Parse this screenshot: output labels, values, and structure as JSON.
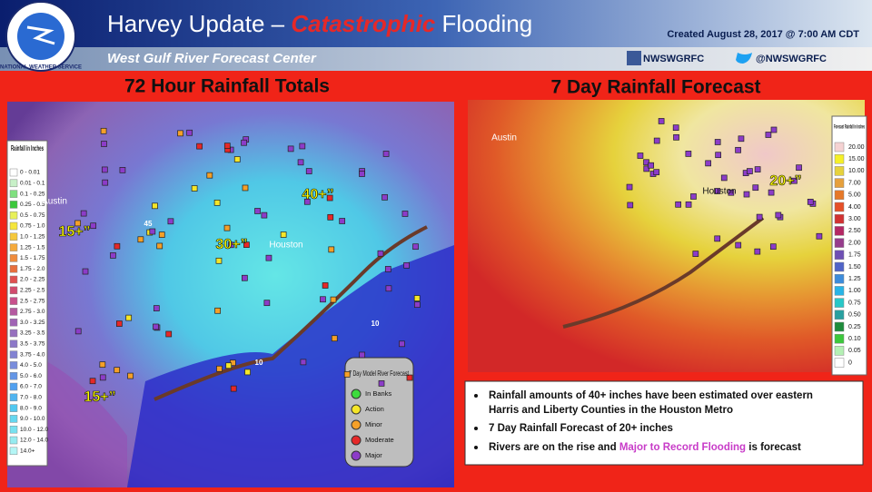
{
  "header": {
    "logo": "NATIONAL WEATHER SERVICE",
    "title": [
      {
        "text": "Harvey Update – "
      },
      {
        "text": "Catastrophic",
        "emphasis": true
      },
      {
        "text": " Flooding"
      }
    ],
    "created": "Created August  28, 2017 @ 7:00  AM CDT",
    "subtitle": "West Gulf River Forecast Center",
    "facebook": "NWSWGRFC",
    "twitter": "@NWSWGRFC"
  },
  "left_panel": {
    "title": "72 Hour Rainfall Totals",
    "legend_title": "Rainfall in Inches",
    "legend": [
      {
        "label": "0 - 0.01",
        "color": "#ffffff"
      },
      {
        "label": "0.01 - 0.1",
        "color": "#c8f0c8"
      },
      {
        "label": "0.1 - 0.25",
        "color": "#7fe07f"
      },
      {
        "label": "0.25 - 0.5",
        "color": "#3cc83c"
      },
      {
        "label": "0.5 - 0.75",
        "color": "#e8f05a"
      },
      {
        "label": "0.75 - 1.0",
        "color": "#f5e63c"
      },
      {
        "label": "1.0 - 1.25",
        "color": "#f5c83c"
      },
      {
        "label": "1.25 - 1.5",
        "color": "#f5aa3c"
      },
      {
        "label": "1.5 - 1.75",
        "color": "#f08c3c"
      },
      {
        "label": "1.75 - 2.0",
        "color": "#e86e3c"
      },
      {
        "label": "2.0 - 2.25",
        "color": "#e05050"
      },
      {
        "label": "2.25 - 2.5",
        "color": "#d24b6e"
      },
      {
        "label": "2.5 - 2.75",
        "color": "#c8508c"
      },
      {
        "label": "2.75 - 3.0",
        "color": "#b45aa0"
      },
      {
        "label": "3.0 - 3.25",
        "color": "#a064b4"
      },
      {
        "label": "3.25 - 3.5",
        "color": "#9670be"
      },
      {
        "label": "3.5 - 3.75",
        "color": "#8c78c8"
      },
      {
        "label": "3.75 - 4.0",
        "color": "#8282d2"
      },
      {
        "label": "4.0 - 5.0",
        "color": "#788cdc"
      },
      {
        "label": "5.0 - 6.0",
        "color": "#6496e6"
      },
      {
        "label": "6.0 - 7.0",
        "color": "#50a0f0"
      },
      {
        "label": "7.0 - 8.0",
        "color": "#50b4f0"
      },
      {
        "label": "8.0 - 9.0",
        "color": "#50c8f0"
      },
      {
        "label": "9.0 - 10.0",
        "color": "#64d7f0"
      },
      {
        "label": "10.0 - 12.0",
        "color": "#78e1f0"
      },
      {
        "label": "12.0 - 14.0",
        "color": "#96ebf0"
      },
      {
        "label": "14.0+",
        "color": "#b4f5f5"
      }
    ],
    "map_labels": [
      "Austin",
      "Houston",
      "15+”",
      "30+”",
      "40+”",
      "15+”",
      "45",
      "10",
      "10"
    ],
    "river_legend_title": "7 Day Model River Forecast",
    "river_legend": [
      {
        "label": "In Banks",
        "color": "#3cdc3c"
      },
      {
        "label": "Action",
        "color": "#f5e628"
      },
      {
        "label": "Minor",
        "color": "#f5a028"
      },
      {
        "label": "Moderate",
        "color": "#e62828"
      },
      {
        "label": "Major",
        "color": "#8c3cc8"
      }
    ]
  },
  "right_panel": {
    "title": "7 Day Rainfall Forecast",
    "legend_title": "Forecast Rainfall in Inches",
    "legend": [
      {
        "label": "20.00",
        "color": "#f5d2d2"
      },
      {
        "label": "15.00",
        "color": "#f5f028"
      },
      {
        "label": "10.00",
        "color": "#e6d23c"
      },
      {
        "label": "7.00",
        "color": "#e6a03c"
      },
      {
        "label": "5.00",
        "color": "#e67828"
      },
      {
        "label": "4.00",
        "color": "#e65028"
      },
      {
        "label": "3.00",
        "color": "#d23232"
      },
      {
        "label": "2.50",
        "color": "#b42864"
      },
      {
        "label": "2.00",
        "color": "#963c8c"
      },
      {
        "label": "1.75",
        "color": "#6e50b4"
      },
      {
        "label": "1.50",
        "color": "#5064c8"
      },
      {
        "label": "1.25",
        "color": "#3c8cdc"
      },
      {
        "label": "1.00",
        "color": "#28b4e6"
      },
      {
        "label": "0.75",
        "color": "#28c8c8"
      },
      {
        "label": "0.50",
        "color": "#28a0a0"
      },
      {
        "label": "0.25",
        "color": "#1e8c3c"
      },
      {
        "label": "0.10",
        "color": "#3cc83c"
      },
      {
        "label": "0.05",
        "color": "#b4f0b4"
      },
      {
        "label": "0",
        "color": "#ffffff"
      }
    ],
    "map_labels": [
      "Austin",
      "Houston",
      "20+”"
    ]
  },
  "bullets": [
    [
      {
        "text": "Rainfall amounts of 40+ inches have been estimated over eastern Harris and Liberty Counties in the Houston Metro"
      }
    ],
    [
      {
        "text": "7 Day Rainfall Forecast of 20+ inches"
      }
    ],
    [
      {
        "text": "Rivers are on the rise and "
      },
      {
        "text": "Major to Record Flooding",
        "highlight": true
      },
      {
        "text": " is forecast"
      }
    ]
  ]
}
